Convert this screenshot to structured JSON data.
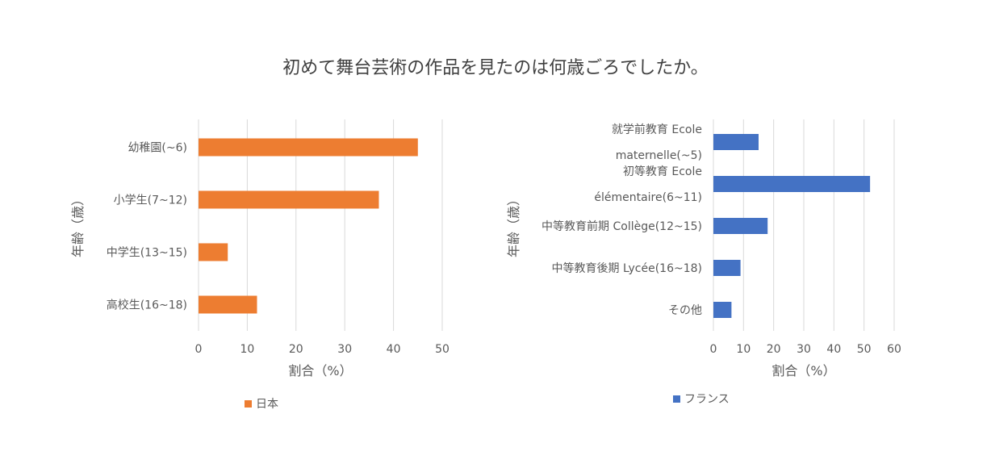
{
  "title": "初めて舞台芸術の作品を見たのは何歳ごろでしたか。",
  "chart_data": [
    {
      "type": "bar",
      "orientation": "horizontal",
      "categories": [
        "幼稚園(~6)",
        "小学生(7~12)",
        "中学生(13~15)",
        "高校生(16~18)"
      ],
      "series": [
        {
          "name": "日本",
          "color": "#ED7D31",
          "values": [
            45,
            37,
            6,
            12
          ]
        }
      ],
      "xlabel": "割合（%）",
      "ylabel": "年齢（歳）",
      "xlim": [
        0,
        50
      ],
      "xticks": [
        0,
        10,
        20,
        30,
        40,
        50
      ],
      "grid": true,
      "legend": "bottom"
    },
    {
      "type": "bar",
      "orientation": "horizontal",
      "categories": [
        [
          "就学前教育 Ecole",
          "maternelle(~5)"
        ],
        [
          "初等教育 Ecole",
          "élémentaire(6~11)"
        ],
        [
          "中等教育前期 Collège(12~15)"
        ],
        [
          "中等教育後期 Lycée(16~18)"
        ],
        [
          "その他"
        ]
      ],
      "series": [
        {
          "name": "フランス",
          "color": "#4472C4",
          "values": [
            15,
            52,
            18,
            9,
            6
          ]
        }
      ],
      "xlabel": "割合（%）",
      "ylabel": "年齢（歳）",
      "xlim": [
        0,
        60
      ],
      "xticks": [
        0,
        10,
        20,
        30,
        40,
        50,
        60
      ],
      "grid": true,
      "legend": "bottom"
    }
  ]
}
